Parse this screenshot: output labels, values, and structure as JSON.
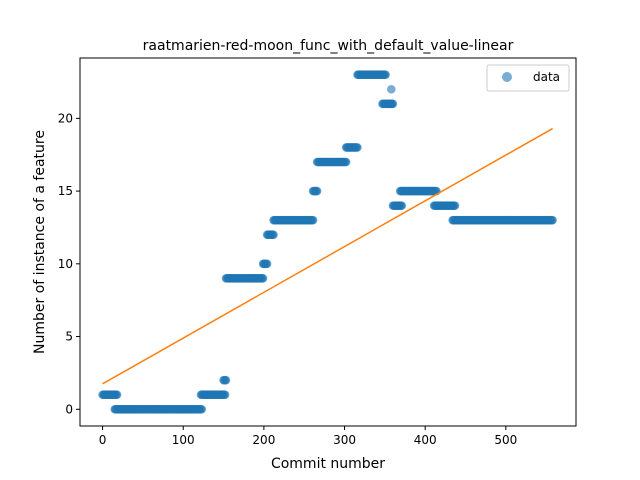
{
  "chart_data": {
    "type": "scatter",
    "title": "raatmarien-red-moon_func_with_default_value-linear",
    "xlabel": "Commit number",
    "ylabel": "Number of instance of a feature",
    "xlim": [
      -28,
      587
    ],
    "ylim": [
      -1.15,
      24.15
    ],
    "xticks": [
      0,
      100,
      200,
      300,
      400,
      500
    ],
    "yticks": [
      0,
      5,
      10,
      15,
      20
    ],
    "grid": false,
    "legend": {
      "position": "top-right",
      "entries": [
        "data"
      ]
    },
    "colors": {
      "points": "#1f77b4",
      "fit_line": "#ff7f0e"
    },
    "series": [
      {
        "name": "data",
        "kind": "scatter",
        "segments": [
          {
            "x_start": 0,
            "x_end": 18,
            "y": 1
          },
          {
            "x_start": 15,
            "x_end": 123,
            "y": 0
          },
          {
            "x_start": 122,
            "x_end": 152,
            "y": 1
          },
          {
            "x_start": 150,
            "x_end": 153,
            "y": 2
          },
          {
            "x_start": 153,
            "x_end": 199,
            "y": 9
          },
          {
            "x_start": 199,
            "x_end": 204,
            "y": 10
          },
          {
            "x_start": 204,
            "x_end": 212,
            "y": 12
          },
          {
            "x_start": 212,
            "x_end": 261,
            "y": 13
          },
          {
            "x_start": 261,
            "x_end": 266,
            "y": 15
          },
          {
            "x_start": 266,
            "x_end": 302,
            "y": 17
          },
          {
            "x_start": 302,
            "x_end": 316,
            "y": 18
          },
          {
            "x_start": 316,
            "x_end": 351,
            "y": 23
          },
          {
            "x_start": 347,
            "x_end": 358,
            "y": 21
          },
          {
            "x_start": 358,
            "x_end": 358,
            "y": 22
          },
          {
            "x_start": 358,
            "x_end": 360,
            "y": 21
          },
          {
            "x_start": 360,
            "x_end": 371,
            "y": 14
          },
          {
            "x_start": 369,
            "x_end": 414,
            "y": 15
          },
          {
            "x_start": 411,
            "x_end": 437,
            "y": 14
          },
          {
            "x_start": 434,
            "x_end": 558,
            "y": 13
          }
        ]
      },
      {
        "name": "",
        "kind": "line",
        "points": [
          [
            0,
            1.75
          ],
          [
            558,
            19.3
          ]
        ]
      }
    ]
  }
}
